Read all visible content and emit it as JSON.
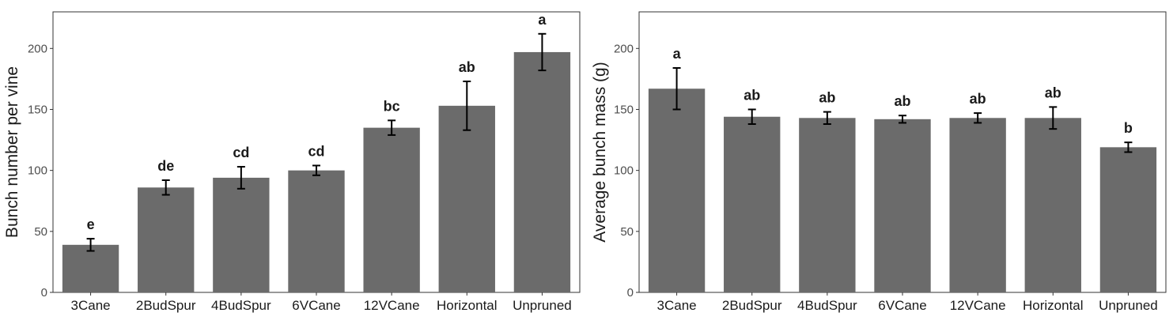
{
  "chart_data": [
    {
      "type": "bar",
      "categories": [
        "3Cane",
        "2BudSpur",
        "4BudSpur",
        "6VCane",
        "12VCane",
        "Horizontal",
        "Unpruned"
      ],
      "values": [
        39,
        86,
        94,
        100,
        135,
        153,
        197
      ],
      "error": [
        5,
        6,
        9,
        4,
        6,
        20,
        15
      ],
      "significance": [
        "e",
        "de",
        "cd",
        "cd",
        "bc",
        "ab",
        "a"
      ],
      "ylabel": "Bunch number per vine",
      "xlabel": "",
      "ylim": [
        0,
        230
      ],
      "yticks": [
        0,
        50,
        100,
        150,
        200
      ],
      "grid": false,
      "bar_color": "#6b6b6b"
    },
    {
      "type": "bar",
      "categories": [
        "3Cane",
        "2BudSpur",
        "4BudSpur",
        "6VCane",
        "12VCane",
        "Horizontal",
        "Unpruned"
      ],
      "values": [
        167,
        144,
        143,
        142,
        143,
        143,
        119
      ],
      "error": [
        17,
        6,
        5,
        3,
        4,
        9,
        4
      ],
      "significance": [
        "a",
        "ab",
        "ab",
        "ab",
        "ab",
        "ab",
        "b"
      ],
      "ylabel": "Average bunch mass (g)",
      "xlabel": "",
      "ylim": [
        0,
        230
      ],
      "yticks": [
        0,
        50,
        100,
        150,
        200
      ],
      "grid": false,
      "bar_color": "#6b6b6b"
    }
  ]
}
